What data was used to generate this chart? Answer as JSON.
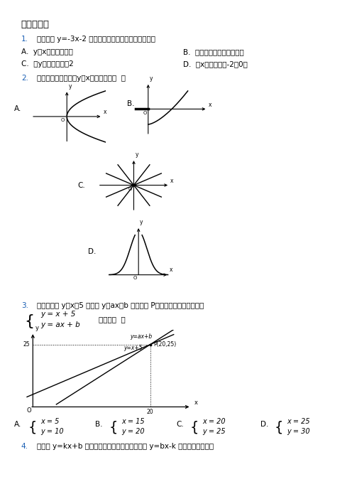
{
  "bg_color": "#ffffff",
  "black_color": "#000000",
  "number_color": "#1a5fb4",
  "gray_color": "#888888",
  "title": "一、选择题",
  "q1_num": "1.",
  "q1_text": "一次函数 y=-3x-2 的图象和性质，表述正确的是（）",
  "q1_A": "A.  y随x的增大而增大",
  "q1_B": "B.  函数图象不经过第一象限",
  "q1_C": "C.  在y轴上的截距为2",
  "q1_D": "D.  与x轴交于点（-2，0）",
  "q2_num": "2.",
  "q2_text": "下列图象中，不表示y是x的函数的是（  ）",
  "q3_num": "3.",
  "q3_text": "如图，直线 y＝x＋5 和直线 y＝ax＋b 相交于点 P，根据图象可知，方程组",
  "q3_sys1": "y = x + 5",
  "q3_sys2": "y = ax + b",
  "q3_de": "的解是（  ）",
  "q4_num": "4.",
  "q4_text": "若直线 y=kx+b 经过第一、二、四象限，则函数 y=bx-k 的大致图像是（）"
}
